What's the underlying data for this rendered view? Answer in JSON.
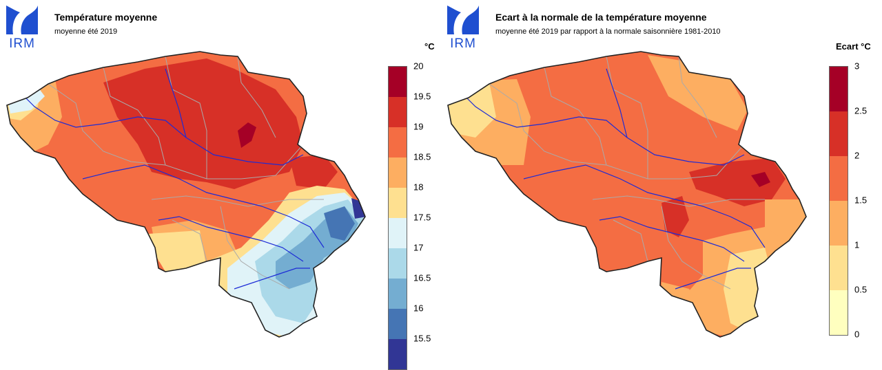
{
  "panels": [
    {
      "logo_text": "IRM",
      "title": "Température moyenne",
      "subtitle": "moyenne été 2019",
      "unit": "°C",
      "legend": {
        "ticks": [
          "20",
          "19.5",
          "19",
          "18.5",
          "18",
          "17.5",
          "17",
          "16.5",
          "16",
          "15.5"
        ],
        "colors": [
          "#a50026",
          "#d73027",
          "#f46d43",
          "#fdae61",
          "#fee090",
          "#ffffbf",
          "#e0f3f8",
          "#abd9e9",
          "#74add1",
          "#4575b4",
          "#313695"
        ]
      }
    },
    {
      "logo_text": "IRM",
      "title": "Ecart à la normale de la température moyenne",
      "subtitle": "moyenne été 2019 par rapport à la normale saisonnière 1981-2010",
      "unit": "Ecart  °C",
      "legend": {
        "ticks": [
          "3",
          "2.5",
          "2",
          "1.5",
          "1",
          "0.5",
          "0"
        ],
        "colors": [
          "#a50026",
          "#d73027",
          "#f46d43",
          "#fdae61",
          "#fee090",
          "#ffffbf"
        ]
      }
    }
  ]
}
